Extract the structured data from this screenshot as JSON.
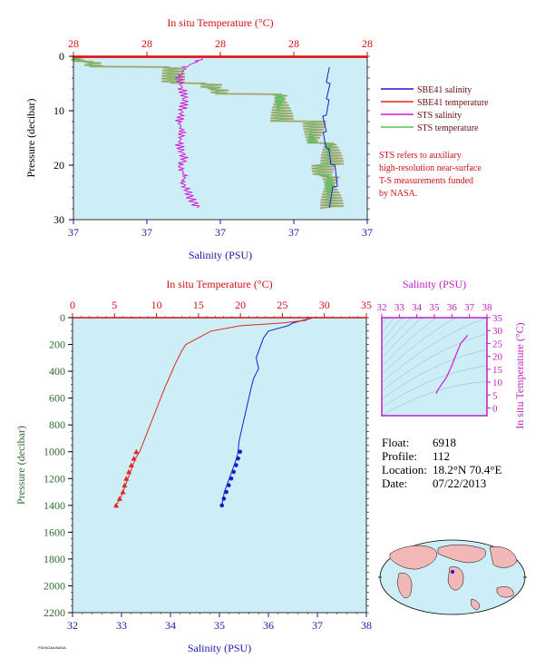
{
  "colors": {
    "plot_bg": "#cdeef6",
    "salinity": "#1a1acc",
    "temperature": "#e6261f",
    "sts_salinity": "#d41ad4",
    "sts_temperature": "#5fbf5f",
    "sts_temperature_fill": "#f4a0a0",
    "axis_temp": "#d01010",
    "axis_sal": "#1a1aa8",
    "axis_pressure": "#2e6b2e",
    "ts_axis": "#c020c0"
  },
  "chart_data": [
    {
      "id": "top",
      "type": "line",
      "top_axis_label": "In situ Temperature (°C)",
      "top_tick_labels": [
        "28",
        "28",
        "28",
        "28",
        "28"
      ],
      "xlabel": "Salinity (PSU)",
      "bottom_tick_labels": [
        "37",
        "37",
        "37",
        "37",
        "37"
      ],
      "ylabel": "Pressure (decibar)",
      "ylim": [
        30,
        0
      ],
      "y_ticks": [
        "0",
        "10",
        "20",
        "30"
      ],
      "legend_position": "right",
      "legend": [
        {
          "label": "SBE41 salinity",
          "color_key": "salinity"
        },
        {
          "label": "SBE41 temperature",
          "color_key": "temperature"
        },
        {
          "label": "STS salinity",
          "color_key": "sts_salinity"
        },
        {
          "label": "STS temperature",
          "color_key": "sts_temperature"
        }
      ],
      "note": [
        "STS refers to auxiliary",
        "high-resolution near-surface",
        "T-S measurements funded",
        "by NASA."
      ],
      "series": [
        {
          "name": "STS salinity",
          "axis_frac_x": [
            0.45,
            0.42,
            0.38,
            0.36,
            0.37,
            0.38,
            0.37,
            0.36,
            0.37,
            0.36,
            0.37,
            0.38,
            0.36,
            0.37,
            0.38,
            0.37,
            0.38,
            0.39,
            0.4,
            0.41,
            0.42,
            0.43
          ],
          "y": [
            0,
            1,
            2,
            4,
            6,
            8,
            10,
            12,
            14,
            16,
            18,
            19,
            20,
            21,
            22,
            23,
            24,
            25,
            26,
            27,
            27.5,
            28
          ]
        },
        {
          "name": "STS temperature",
          "axis_frac_x": [
            0.0,
            0.3,
            0.8,
            1.0,
            1.2,
            1.5,
            2.0,
            2.3,
            2.8,
            3.1,
            3.5,
            3.9
          ],
          "y": [
            0,
            1,
            3,
            5,
            6,
            8,
            10,
            13,
            16,
            20,
            24,
            28
          ]
        },
        {
          "name": "SBE41 salinity",
          "axis_frac_x": [
            0.88,
            0.87,
            0.86,
            0.85,
            0.86,
            0.87,
            0.88,
            0.89,
            0.88
          ],
          "y": [
            2,
            5,
            8,
            11,
            14,
            17,
            20,
            24,
            28
          ]
        },
        {
          "name": "SBE41 temperature",
          "axis_frac_x": [
            0.98,
            0.98
          ],
          "y": [
            0,
            0.3
          ]
        }
      ]
    },
    {
      "id": "main",
      "type": "line",
      "top_axis_label": "In situ Temperature (°C)",
      "top_ticks": [
        0,
        5,
        10,
        15,
        20,
        25,
        30,
        35
      ],
      "xlabel": "Salinity (PSU)",
      "xlim_salinity": [
        32,
        38
      ],
      "xlim_temperature": [
        0,
        35
      ],
      "ylabel": "Pressure (decibar)",
      "ylim": [
        2200,
        0
      ],
      "y_ticks": [
        0,
        200,
        400,
        600,
        800,
        1000,
        1200,
        1400,
        1600,
        1800,
        2000,
        2200
      ],
      "x_ticks": [
        32,
        33,
        34,
        35,
        36,
        37,
        38
      ],
      "series": [
        {
          "name": "SBE41 salinity",
          "x": [
            36.9,
            36.7,
            36.5,
            36.4,
            36.2,
            36.0,
            35.9,
            35.85,
            35.8,
            35.75,
            35.8,
            35.7,
            35.65,
            35.6,
            35.55,
            35.5,
            35.45,
            35.4,
            35.38,
            35.35,
            35.3,
            35.25,
            35.2,
            35.15,
            35.1,
            35.05
          ],
          "y": [
            2,
            20,
            40,
            60,
            80,
            100,
            150,
            200,
            250,
            300,
            380,
            450,
            520,
            600,
            680,
            760,
            840,
            920,
            1000,
            1050,
            1100,
            1150,
            1200,
            1250,
            1300,
            1400
          ]
        },
        {
          "name": "SBE41 temperature",
          "x": [
            28.2,
            27.8,
            25.0,
            20.0,
            16.5,
            15.0,
            13.5,
            13.0,
            12.2,
            11.5,
            11.0,
            10.5,
            10.0,
            9.5,
            9.0,
            8.5,
            8.0,
            7.5,
            7.2,
            6.9,
            6.6,
            6.3,
            6.0,
            5.7,
            5.4,
            5.0
          ],
          "y": [
            2,
            20,
            40,
            60,
            100,
            150,
            200,
            250,
            350,
            450,
            520,
            600,
            680,
            760,
            840,
            920,
            1000,
            1050,
            1100,
            1150,
            1200,
            1250,
            1300,
            1350,
            1380,
            1400
          ]
        }
      ],
      "markers_salinity": {
        "x": [
          35.42,
          35.38,
          35.34,
          35.29,
          35.24,
          35.19,
          35.14,
          35.09,
          35.05
        ],
        "y": [
          1000,
          1050,
          1100,
          1150,
          1200,
          1250,
          1300,
          1350,
          1400
        ]
      },
      "markers_temperature": {
        "x": [
          7.6,
          7.3,
          7.0,
          6.7,
          6.4,
          6.2,
          6.0,
          5.6,
          5.2
        ],
        "y": [
          1000,
          1050,
          1100,
          1150,
          1200,
          1250,
          1300,
          1350,
          1400
        ]
      }
    },
    {
      "id": "ts_diagram",
      "type": "line",
      "top_axis_label": "Salinity (PSU)",
      "x_ticks": [
        32,
        33,
        34,
        35,
        36,
        37,
        38
      ],
      "right_axis_label": "In situ Temperature (°C)",
      "y_ticks": [
        0,
        5,
        10,
        15,
        20,
        25,
        30,
        35
      ],
      "xlim": [
        32,
        38
      ],
      "ylim": [
        -3,
        35
      ],
      "series": [
        {
          "name": "T-S",
          "x": [
            36.9,
            36.5,
            36.2,
            36.0,
            35.8,
            35.7,
            35.6,
            35.5,
            35.4,
            35.3,
            35.2,
            35.1
          ],
          "y": [
            28.2,
            25.0,
            20.0,
            16.5,
            13.5,
            12.0,
            11.0,
            10.0,
            9.0,
            8.0,
            7.0,
            5.5
          ]
        }
      ]
    }
  ],
  "float_info": {
    "float_label": "Float:",
    "float_value": "6918",
    "profile_label": "Profile:",
    "profile_value": "112",
    "location_label": "Location:",
    "location_value": "18.2°N  70.4°E",
    "date_label": "Date:",
    "date_value": "07/22/2013"
  },
  "footer_text": "FSI/NOAA/NASA"
}
